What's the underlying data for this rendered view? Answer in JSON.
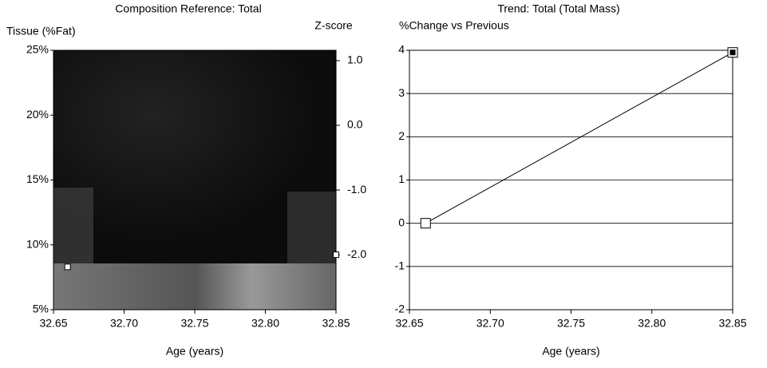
{
  "chart_data": [
    {
      "type": "scatter",
      "title": "Composition Reference: Total",
      "y_label": "Tissue (%Fat)",
      "y2_label": "Z-score",
      "x_label": "Age (years)",
      "xlim": [
        32.65,
        32.85
      ],
      "xticks": [
        32.65,
        {
          "value": 32.7,
          "label": "32.70"
        },
        32.75,
        {
          "value": 32.8,
          "label": "32.80"
        },
        32.85
      ],
      "ylim": [
        5,
        25
      ],
      "yticks": [
        {
          "value": 5,
          "label": "5%"
        },
        {
          "value": 10,
          "label": "10%"
        },
        {
          "value": 15,
          "label": "15%"
        },
        {
          "value": 20,
          "label": "20%"
        },
        {
          "value": 25,
          "label": "25%"
        }
      ],
      "y2lim": [
        -2.85,
        1.16
      ],
      "y2ticks": [
        {
          "value": 1,
          "label": "1.0"
        },
        {
          "value": 0,
          "label": "0.0"
        },
        {
          "value": -1,
          "label": "-1.0"
        },
        {
          "value": -2,
          "label": "-2.0"
        }
      ],
      "grid": false,
      "series": [
        {
          "color": "#ffffff",
          "x": [
            32.66
          ],
          "values": [
            8.3
          ]
        },
        {
          "color": "#ffffff",
          "axis": "y2",
          "x": [
            32.85
          ],
          "values": [
            -2.0
          ]
        }
      ]
    },
    {
      "type": "line",
      "title": "Trend: Total (Total Mass)",
      "y_label": "%Change vs Previous",
      "x_label": "Age (years)",
      "xlim": [
        32.65,
        32.85
      ],
      "xticks": [
        32.65,
        {
          "value": 32.7,
          "label": "32.70"
        },
        32.75,
        {
          "value": 32.8,
          "label": "32.80"
        },
        32.85
      ],
      "ylim": [
        -2,
        4
      ],
      "yticks": [
        -2,
        -1,
        0,
        1,
        2,
        3,
        4
      ],
      "grid": true,
      "series": [
        {
          "color": "#000000",
          "x": [
            32.66,
            32.85
          ],
          "values": [
            0,
            3.95
          ]
        }
      ]
    }
  ]
}
